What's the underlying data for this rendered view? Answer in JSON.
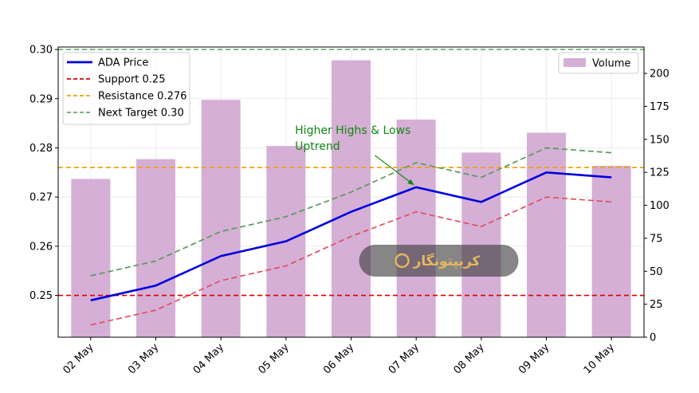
{
  "chart_data": {
    "type": "line",
    "categories": [
      "02 May",
      "03 May",
      "04 May",
      "05 May",
      "06 May",
      "07 May",
      "08 May",
      "09 May",
      "10 May"
    ],
    "series": [
      {
        "name": "ADA Price",
        "axis": "left",
        "style": "solid",
        "color": "#0000dd",
        "values": [
          0.249,
          0.252,
          0.258,
          0.261,
          0.267,
          0.272,
          0.269,
          0.275,
          0.274
        ]
      },
      {
        "name": "",
        "axis": "left",
        "style": "dashed",
        "color": "#e05060",
        "values": [
          0.244,
          0.247,
          0.253,
          0.256,
          0.262,
          0.267,
          0.264,
          0.27,
          0.269
        ]
      },
      {
        "name": "",
        "axis": "left",
        "style": "dashed",
        "color": "#5a9a5a",
        "values": [
          0.254,
          0.257,
          0.263,
          0.266,
          0.271,
          0.277,
          0.274,
          0.28,
          0.279
        ]
      }
    ],
    "bars": {
      "name": "Volume",
      "axis": "right",
      "color": "#d5afd6",
      "values": [
        120,
        135,
        180,
        145,
        210,
        165,
        140,
        155,
        130
      ]
    },
    "hlines": [
      {
        "name": "Support 0.25",
        "value": 0.25,
        "color": "#dd0000"
      },
      {
        "name": "Resistance 0.276",
        "value": 0.276,
        "color": "#f0a000"
      },
      {
        "name": "Next Target 0.30",
        "value": 0.3,
        "color": "#66aa66"
      }
    ],
    "ylim": [
      0.2415,
      0.3005
    ],
    "y2lim": [
      0,
      220
    ],
    "yticks": [
      0.25,
      0.26,
      0.27,
      0.28,
      0.29,
      0.3
    ],
    "ytick_labels": [
      "0.25",
      "0.26",
      "0.27",
      "0.28",
      "0.29",
      "0.30"
    ],
    "y2ticks": [
      0,
      25,
      50,
      75,
      100,
      125,
      150,
      175,
      200
    ],
    "y2tick_labels": [
      "0",
      "25",
      "50",
      "75",
      "100",
      "125",
      "150",
      "175",
      "200"
    ],
    "grid": true,
    "legend_left_placement": "top-left",
    "legend_right_placement": "top-right",
    "annotation": {
      "lines": [
        "Higher Highs & Lows",
        "Uptrend"
      ],
      "target_category": "07 May",
      "target_value": 0.272,
      "color": "#118811"
    },
    "title": "",
    "xlabel": "",
    "ylabel": ""
  },
  "watermark": {
    "text": "کریپتونگار",
    "logo": "crypto-c-logo",
    "color": "#e6b85c"
  }
}
